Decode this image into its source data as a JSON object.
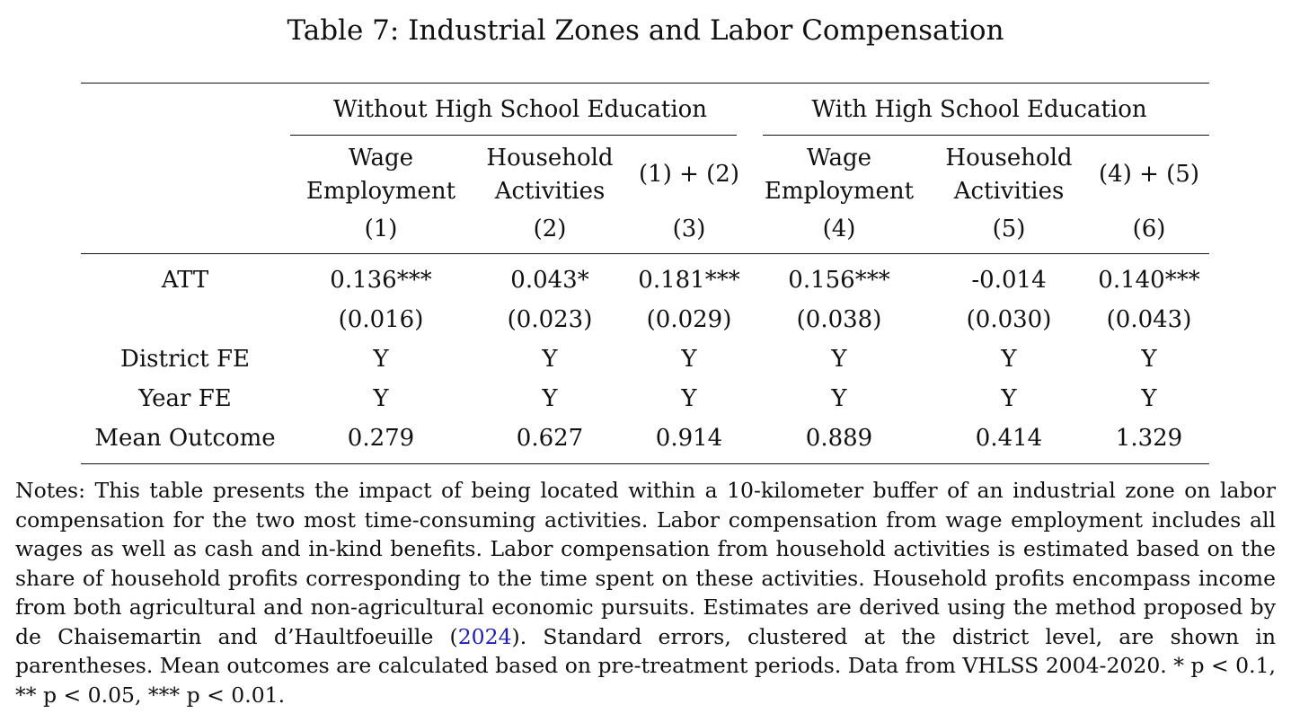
{
  "table": {
    "title": "Table 7: Industrial Zones and Labor Compensation",
    "group_headers": [
      "Without High School Education",
      "With High School Education"
    ],
    "columns": [
      {
        "label_line1": "Wage",
        "label_line2": "Employment",
        "number": "(1)"
      },
      {
        "label_line1": "Household",
        "label_line2": "Activities",
        "number": "(2)"
      },
      {
        "label_line1": "(1) + (2)",
        "label_line2": "",
        "number": "(3)"
      },
      {
        "label_line1": "Wage",
        "label_line2": "Employment",
        "number": "(4)"
      },
      {
        "label_line1": "Household",
        "label_line2": "Activities",
        "number": "(5)"
      },
      {
        "label_line1": "(4) + (5)",
        "label_line2": "",
        "number": "(6)"
      }
    ],
    "rows": [
      {
        "label": "ATT",
        "values": [
          "0.136***",
          "0.043*",
          "0.181***",
          "0.156***",
          "-0.014",
          "0.140***"
        ]
      },
      {
        "label": "",
        "values": [
          "(0.016)",
          "(0.023)",
          "(0.029)",
          "(0.038)",
          "(0.030)",
          "(0.043)"
        ]
      },
      {
        "label": "District FE",
        "values": [
          "Y",
          "Y",
          "Y",
          "Y",
          "Y",
          "Y"
        ]
      },
      {
        "label": "Year FE",
        "values": [
          "Y",
          "Y",
          "Y",
          "Y",
          "Y",
          "Y"
        ]
      },
      {
        "label": "Mean Outcome",
        "values": [
          "0.279",
          "0.627",
          "0.914",
          "0.889",
          "0.414",
          "1.329"
        ]
      }
    ]
  },
  "notes": {
    "text_before_link": "Notes: This table presents the impact of being located within a 10-kilometer buffer of an industrial zone on labor compensation for the two most time-consuming activities. Labor compensation from wage employment includes all wages as well as cash and in-kind benefits. Labor compensation from household activities is estimated based on the share of household profits corresponding to the time spent on these activities. Household profits encompass income from both agricultural and non-agricultural economic pursuits. Estimates are derived using the method proposed by de Chaisemartin and d’Haultfoeuille (",
    "link_text": "2024",
    "text_after_link": "). Standard errors, clustered at the district level, are shown in parentheses. Mean outcomes are calculated based on pre-treatment periods. Data from VHLSS 2004-2020. * p < 0.1, ** p < 0.05, *** p < 0.01.",
    "link_color": "#1f1fb8"
  }
}
